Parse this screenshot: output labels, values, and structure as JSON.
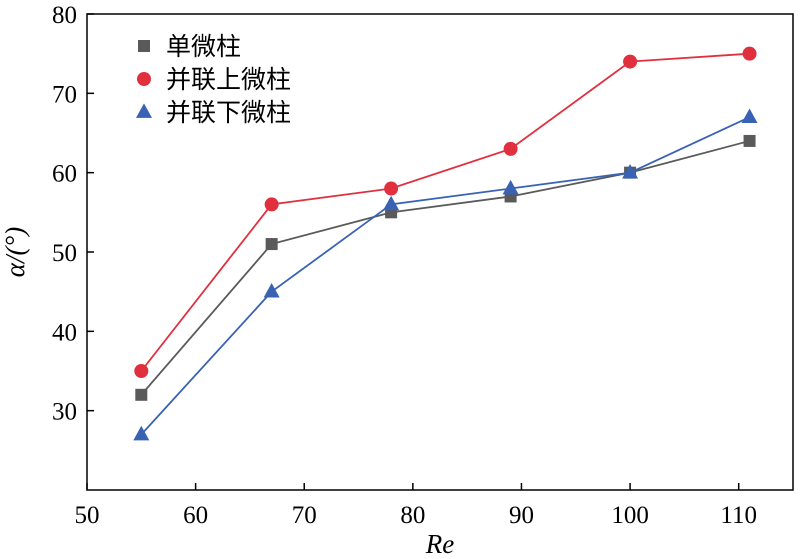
{
  "chart_data": {
    "type": "line",
    "xlabel": "Re",
    "ylabel": "α/(°)",
    "xlim": [
      50,
      115
    ],
    "ylim": [
      20,
      80
    ],
    "xticks": [
      "50",
      "60",
      "70",
      "80",
      "90",
      "100",
      "110"
    ],
    "yticks": [
      "30",
      "40",
      "50",
      "60",
      "70",
      "80"
    ],
    "x": [
      55,
      67,
      78,
      89,
      100,
      111
    ],
    "legend_position": "top-left",
    "grid": false,
    "series": [
      {
        "name": "单微柱",
        "values": [
          32,
          51,
          55,
          57,
          60,
          64
        ],
        "color": "#5a5a5a",
        "marker": "square"
      },
      {
        "name": "并联上微柱",
        "values": [
          35,
          56,
          58,
          63,
          74,
          75
        ],
        "color": "#e0303e",
        "marker": "circle"
      },
      {
        "name": "并联下微柱",
        "values": [
          27,
          45,
          56,
          58,
          60,
          67
        ],
        "color": "#3a62b4",
        "marker": "triangle"
      }
    ]
  }
}
